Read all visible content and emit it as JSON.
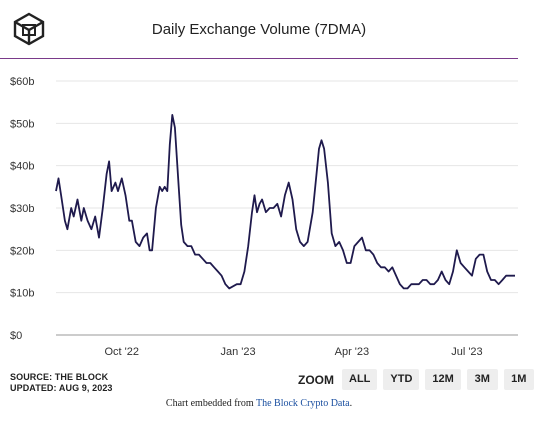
{
  "header": {
    "title": "Daily Exchange Volume (7DMA)",
    "logo_icon": "the-block-cube-logo"
  },
  "footer": {
    "source": "SOURCE: THE BLOCK",
    "updated": "UPDATED: AUG 9, 2023",
    "embed_prefix": "Chart embedded from",
    "embed_link": "The Block Crypto Data",
    "embed_suffix": "."
  },
  "zoom": {
    "label": "ZOOM",
    "buttons": [
      "ALL",
      "YTD",
      "12M",
      "3M",
      "1M"
    ]
  },
  "colors": {
    "line": "#1f1a4d",
    "grid": "#e6e6e6",
    "rule": "#7a3a8a",
    "link": "#1a4fa0"
  },
  "chart_data": {
    "type": "line",
    "title": "Daily Exchange Volume (7DMA)",
    "ylim": [
      0,
      60
    ],
    "yticks": [
      0,
      10,
      20,
      30,
      40,
      50,
      60
    ],
    "ytick_labels": [
      "$0",
      "$10b",
      "$20b",
      "$30b",
      "$40b",
      "$50b",
      "$60b"
    ],
    "xlim": [
      "2022-08-10",
      "2023-08-08"
    ],
    "xticks": [
      "2022-10-01",
      "2023-01-01",
      "2023-04-01",
      "2023-07-01"
    ],
    "xtick_labels": [
      "Oct '22",
      "Jan '23",
      "Apr '23",
      "Jul '23"
    ],
    "grid": "horizontal",
    "series": [
      {
        "name": "",
        "points": [
          [
            "2022-08-10",
            34
          ],
          [
            "2022-08-12",
            37
          ],
          [
            "2022-08-14",
            33
          ],
          [
            "2022-08-17",
            27
          ],
          [
            "2022-08-19",
            25
          ],
          [
            "2022-08-22",
            30
          ],
          [
            "2022-08-24",
            28
          ],
          [
            "2022-08-27",
            32
          ],
          [
            "2022-08-30",
            27
          ],
          [
            "2022-09-01",
            30
          ],
          [
            "2022-09-04",
            27
          ],
          [
            "2022-09-07",
            25
          ],
          [
            "2022-09-10",
            28
          ],
          [
            "2022-09-13",
            23
          ],
          [
            "2022-09-16",
            30
          ],
          [
            "2022-09-19",
            38
          ],
          [
            "2022-09-21",
            41
          ],
          [
            "2022-09-23",
            34
          ],
          [
            "2022-09-26",
            36
          ],
          [
            "2022-09-28",
            34
          ],
          [
            "2022-10-01",
            37
          ],
          [
            "2022-10-04",
            33
          ],
          [
            "2022-10-07",
            27
          ],
          [
            "2022-10-09",
            27
          ],
          [
            "2022-10-12",
            22
          ],
          [
            "2022-10-15",
            21
          ],
          [
            "2022-10-18",
            23
          ],
          [
            "2022-10-21",
            24
          ],
          [
            "2022-10-23",
            20
          ],
          [
            "2022-10-25",
            20
          ],
          [
            "2022-10-28",
            30
          ],
          [
            "2022-10-31",
            35
          ],
          [
            "2022-11-02",
            34
          ],
          [
            "2022-11-04",
            35
          ],
          [
            "2022-11-06",
            34
          ],
          [
            "2022-11-08",
            45
          ],
          [
            "2022-11-10",
            52
          ],
          [
            "2022-11-12",
            49
          ],
          [
            "2022-11-15",
            35
          ],
          [
            "2022-11-17",
            26
          ],
          [
            "2022-11-19",
            22
          ],
          [
            "2022-11-22",
            21
          ],
          [
            "2022-11-25",
            21
          ],
          [
            "2022-11-28",
            19
          ],
          [
            "2022-12-01",
            19
          ],
          [
            "2022-12-04",
            18
          ],
          [
            "2022-12-07",
            17
          ],
          [
            "2022-12-10",
            17
          ],
          [
            "2022-12-13",
            16
          ],
          [
            "2022-12-16",
            15
          ],
          [
            "2022-12-19",
            14
          ],
          [
            "2022-12-22",
            12
          ],
          [
            "2022-12-25",
            11
          ],
          [
            "2022-12-28",
            11.5
          ],
          [
            "2022-12-31",
            12
          ],
          [
            "2023-01-03",
            12
          ],
          [
            "2023-01-06",
            15
          ],
          [
            "2023-01-09",
            21
          ],
          [
            "2023-01-12",
            29
          ],
          [
            "2023-01-14",
            33
          ],
          [
            "2023-01-16",
            29
          ],
          [
            "2023-01-18",
            31
          ],
          [
            "2023-01-20",
            32
          ],
          [
            "2023-01-23",
            29
          ],
          [
            "2023-01-26",
            30
          ],
          [
            "2023-01-29",
            30
          ],
          [
            "2023-02-01",
            31
          ],
          [
            "2023-02-04",
            28
          ],
          [
            "2023-02-07",
            33
          ],
          [
            "2023-02-10",
            36
          ],
          [
            "2023-02-13",
            32
          ],
          [
            "2023-02-16",
            25
          ],
          [
            "2023-02-19",
            22
          ],
          [
            "2023-02-22",
            21
          ],
          [
            "2023-02-25",
            22
          ],
          [
            "2023-03-01",
            29
          ],
          [
            "2023-03-04",
            38
          ],
          [
            "2023-03-06",
            44
          ],
          [
            "2023-03-08",
            46
          ],
          [
            "2023-03-10",
            44
          ],
          [
            "2023-03-13",
            36
          ],
          [
            "2023-03-16",
            24
          ],
          [
            "2023-03-19",
            21
          ],
          [
            "2023-03-22",
            22
          ],
          [
            "2023-03-25",
            20
          ],
          [
            "2023-03-28",
            17
          ],
          [
            "2023-03-31",
            17
          ],
          [
            "2023-04-03",
            21
          ],
          [
            "2023-04-06",
            22
          ],
          [
            "2023-04-09",
            23
          ],
          [
            "2023-04-12",
            20
          ],
          [
            "2023-04-15",
            20
          ],
          [
            "2023-04-18",
            19
          ],
          [
            "2023-04-21",
            17
          ],
          [
            "2023-04-24",
            16
          ],
          [
            "2023-04-27",
            16
          ],
          [
            "2023-04-30",
            15
          ],
          [
            "2023-05-03",
            16
          ],
          [
            "2023-05-06",
            14
          ],
          [
            "2023-05-09",
            12
          ],
          [
            "2023-05-12",
            11
          ],
          [
            "2023-05-15",
            11
          ],
          [
            "2023-05-18",
            12
          ],
          [
            "2023-05-21",
            12
          ],
          [
            "2023-05-24",
            12
          ],
          [
            "2023-05-27",
            13
          ],
          [
            "2023-05-30",
            13
          ],
          [
            "2023-06-02",
            12
          ],
          [
            "2023-06-05",
            12
          ],
          [
            "2023-06-08",
            13
          ],
          [
            "2023-06-11",
            15
          ],
          [
            "2023-06-14",
            13
          ],
          [
            "2023-06-17",
            12
          ],
          [
            "2023-06-20",
            15
          ],
          [
            "2023-06-23",
            20
          ],
          [
            "2023-06-26",
            17
          ],
          [
            "2023-06-29",
            16
          ],
          [
            "2023-07-02",
            15
          ],
          [
            "2023-07-05",
            14
          ],
          [
            "2023-07-08",
            18
          ],
          [
            "2023-07-11",
            19
          ],
          [
            "2023-07-14",
            19
          ],
          [
            "2023-07-17",
            15
          ],
          [
            "2023-07-20",
            13
          ],
          [
            "2023-07-23",
            13
          ],
          [
            "2023-07-26",
            12
          ],
          [
            "2023-07-29",
            13
          ],
          [
            "2023-08-01",
            14
          ],
          [
            "2023-08-04",
            14
          ],
          [
            "2023-08-08",
            14
          ]
        ]
      }
    ]
  }
}
